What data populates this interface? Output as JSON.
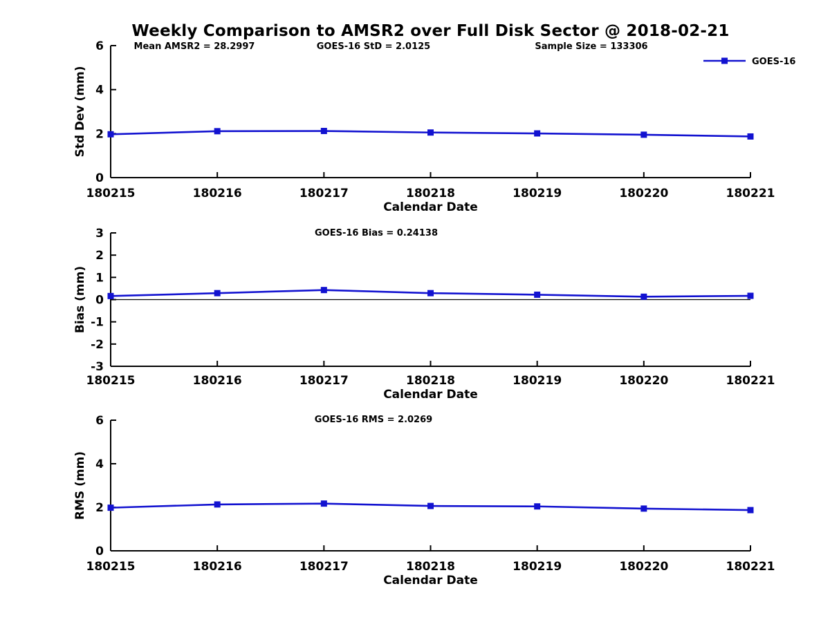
{
  "page_title": "Weekly Comparison to AMSR2 over Full Disk Sector @ 2018-02-21",
  "colors": {
    "series_blue": "#1212d0",
    "axis_black": "#000000",
    "background": "#ffffff"
  },
  "chart_data": [
    {
      "type": "line",
      "subplot": "std-dev",
      "annotations": [
        "Mean AMSR2 = 28.2997",
        "GOES-16 StD = 2.0125",
        "Sample Size = 133306"
      ],
      "legend": {
        "position": "top-right",
        "entries": [
          "GOES-16"
        ]
      },
      "xlabel": "Calendar Date",
      "ylabel": "Std Dev (mm)",
      "categories": [
        "180215",
        "180216",
        "180217",
        "180218",
        "180219",
        "180220",
        "180221"
      ],
      "y_ticks": [
        0,
        2,
        4,
        6
      ],
      "ylim": [
        0,
        6
      ],
      "grid": false,
      "zero_line": false,
      "series": [
        {
          "name": "GOES-16",
          "marker": "square",
          "values": [
            1.97,
            2.11,
            2.12,
            2.05,
            2.01,
            1.95,
            1.87
          ]
        }
      ]
    },
    {
      "type": "line",
      "subplot": "bias",
      "annotations": [
        "GOES-16 Bias  = 0.24138"
      ],
      "xlabel": "Calendar Date",
      "ylabel": "Bias (mm)",
      "categories": [
        "180215",
        "180216",
        "180217",
        "180218",
        "180219",
        "180220",
        "180221"
      ],
      "y_ticks": [
        -3,
        -2,
        -1,
        0,
        1,
        2,
        3
      ],
      "ylim": [
        -3,
        3
      ],
      "grid": false,
      "zero_line": true,
      "series": [
        {
          "name": "GOES-16",
          "marker": "square",
          "values": [
            0.16,
            0.29,
            0.43,
            0.29,
            0.22,
            0.13,
            0.17
          ]
        }
      ]
    },
    {
      "type": "line",
      "subplot": "rms",
      "annotations": [
        "GOES-16 RMS = 2.0269"
      ],
      "xlabel": "Calendar Date",
      "ylabel": "RMS (mm)",
      "categories": [
        "180215",
        "180216",
        "180217",
        "180218",
        "180219",
        "180220",
        "180221"
      ],
      "y_ticks": [
        0,
        2,
        4,
        6
      ],
      "ylim": [
        0,
        6
      ],
      "grid": false,
      "zero_line": false,
      "series": [
        {
          "name": "GOES-16",
          "marker": "square",
          "values": [
            1.98,
            2.13,
            2.17,
            2.06,
            2.04,
            1.94,
            1.87
          ]
        }
      ]
    }
  ]
}
